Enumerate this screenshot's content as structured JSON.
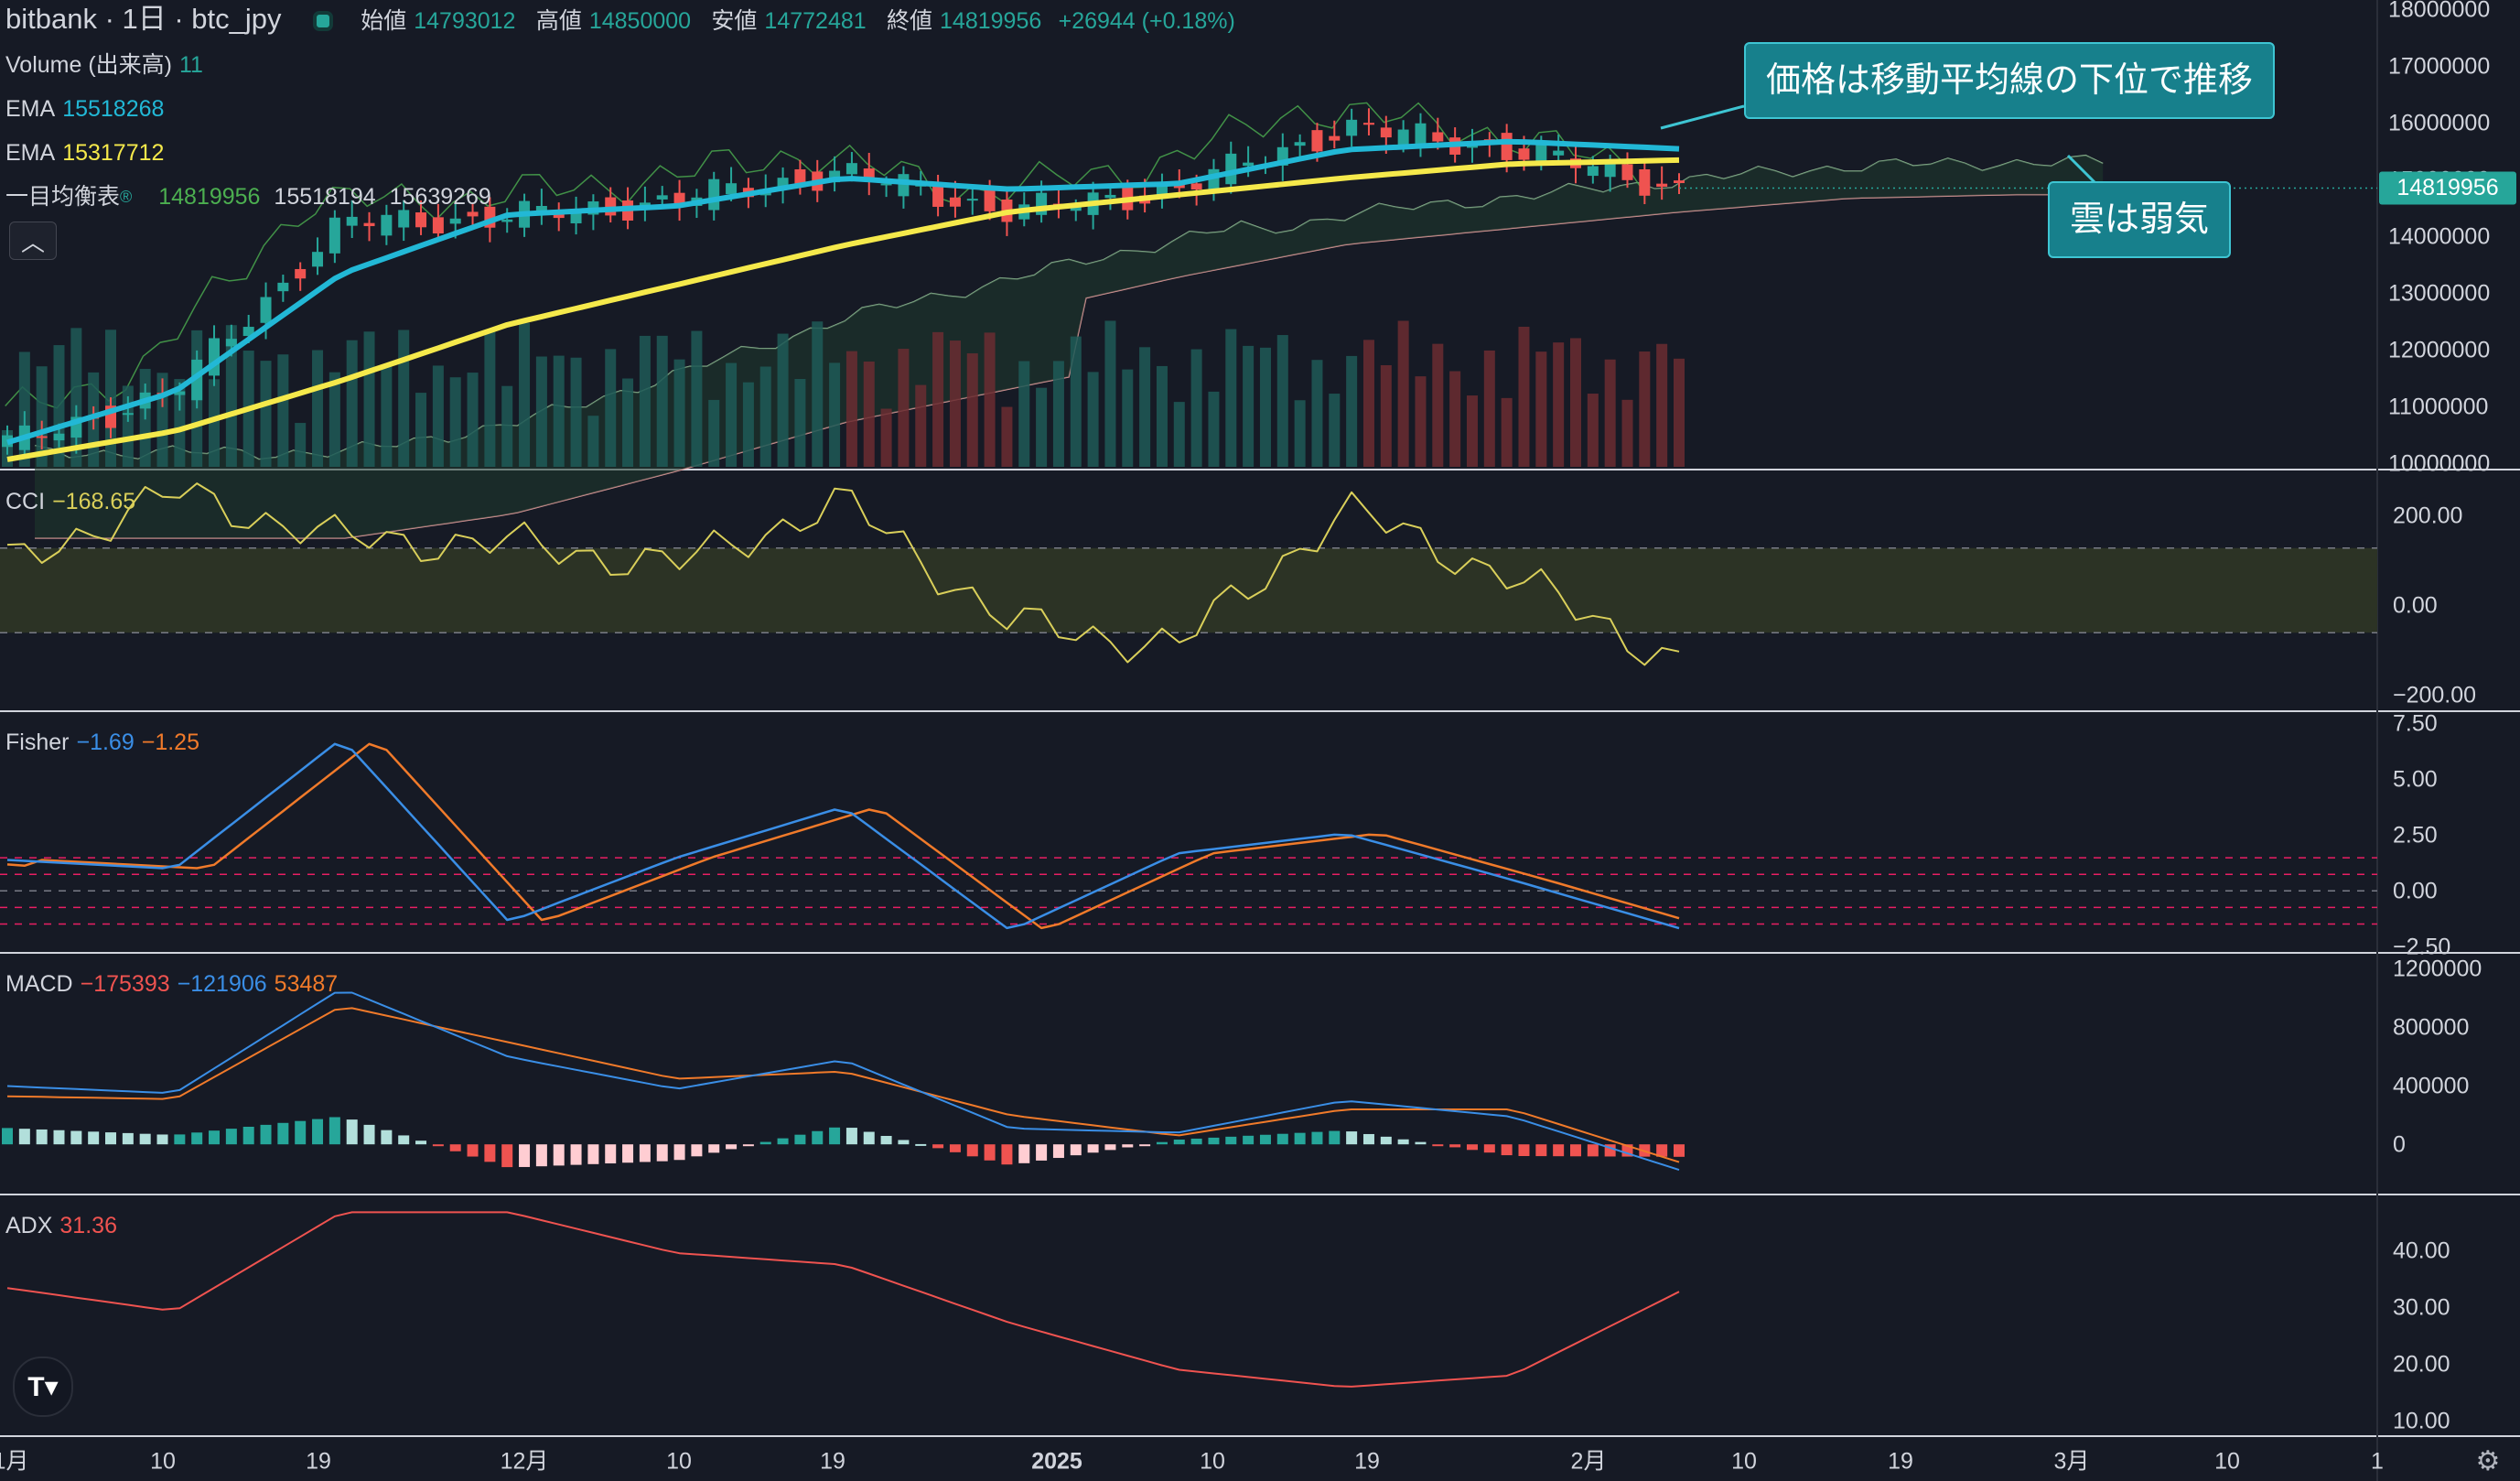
{
  "header": {
    "symbol": "bitbank · 1日 · btc_jpy",
    "open_label": "始値",
    "open_value": "14793012",
    "high_label": "高値",
    "high_value": "14850000",
    "low_label": "安値",
    "low_value": "14772481",
    "close_label": "終値",
    "close_value": "14819956",
    "change": "+26944 (+0.18%)"
  },
  "legends": {
    "volume": {
      "label": "Volume (出来高)",
      "value": "11"
    },
    "ema1": {
      "label": "EMA",
      "value": "15518268"
    },
    "ema2": {
      "label": "EMA",
      "value": "15317712"
    },
    "ichimoku": {
      "label": "一目均衡表",
      "v1": "14819956",
      "v2": "15518194",
      "v3": "15639269"
    },
    "cci": {
      "label": "CCI",
      "value": "−168.65"
    },
    "fisher": {
      "label": "Fisher",
      "v1": "−1.69",
      "v2": "−1.25"
    },
    "macd": {
      "label": "MACD",
      "v1": "−175393",
      "v2": "−121906",
      "v3": "53487"
    },
    "adx": {
      "label": "ADX",
      "value": "31.36"
    }
  },
  "annotations": {
    "a1": "価格は移動平均線の下位で推移",
    "a2": "雲は弱気"
  },
  "price_axis": {
    "ticks": [
      "18000000",
      "17000000",
      "16000000",
      "15000000",
      "14000000",
      "13000000",
      "12000000",
      "11000000",
      "10000000"
    ],
    "current_label": "14819956"
  },
  "cci_axis": [
    "200.00",
    "0.00",
    "−200.00"
  ],
  "fisher_axis": [
    "7.50",
    "5.00",
    "2.50",
    "0.00",
    "−2.50"
  ],
  "macd_axis": [
    "1200000",
    "800000",
    "400000",
    "0"
  ],
  "adx_axis": [
    "40.00",
    "30.00",
    "20.00",
    "10.00"
  ],
  "time_axis": [
    "1月",
    "10",
    "19",
    "12月",
    "10",
    "19",
    "2025",
    "10",
    "19",
    "2月",
    "10",
    "19",
    "3月",
    "10",
    "1"
  ],
  "colors": {
    "up": "#26a69a",
    "down": "#ef5350",
    "ema_fast": "#22b8d6",
    "ema_slow": "#f5e94b",
    "cci": "#d9cf5a",
    "fisher1": "#3a8ee6",
    "fisher2": "#f07a2a",
    "adx": "#ef5350",
    "grid_line": "#d1d4dc"
  },
  "chart_data": {
    "type": "line",
    "title": "bitbank · 1日 · btc_jpy",
    "x_dates": [
      "2024-11-01",
      "2024-11-10",
      "2024-11-19",
      "2024-12-01",
      "2024-12-10",
      "2024-12-19",
      "2025-01-01",
      "2025-01-10",
      "2025-01-19",
      "2025-02-01",
      "2025-02-06"
    ],
    "close": [
      10250000,
      11200000,
      14200000,
      14300000,
      14600000,
      15100000,
      14400000,
      14800000,
      15900000,
      15500000,
      14819956
    ],
    "ema_fast": [
      10300000,
      11200000,
      13300000,
      14350000,
      14500000,
      15000000,
      14800000,
      14900000,
      15500000,
      15650000,
      15518268
    ],
    "ema_slow": [
      10000000,
      10500000,
      11400000,
      12400000,
      13100000,
      13800000,
      14400000,
      14700000,
      15000000,
      15250000,
      15317712
    ],
    "price_ylim": [
      9900000,
      18000000
    ],
    "cci": [
      60,
      230,
      120,
      110,
      60,
      210,
      -80,
      -130,
      190,
      30,
      -168.65
    ],
    "cci_ylim": [
      -200,
      200
    ],
    "fisher": [
      1.4,
      1.0,
      6.9,
      -1.4,
      1.5,
      3.8,
      -1.8,
      1.7,
      2.6,
      0.5,
      -1.69
    ],
    "fisher_signal": [
      1.2,
      0.6,
      6.8,
      -1.2,
      1.2,
      3.6,
      -1.6,
      1.6,
      2.5,
      0.6,
      -1.25
    ],
    "fisher_ylim": [
      -2.5,
      7.5
    ],
    "macd": [
      400000,
      350000,
      1070000,
      600000,
      380000,
      580000,
      110000,
      80000,
      300000,
      190000,
      -175393
    ],
    "macd_signal": [
      330000,
      310000,
      950000,
      700000,
      450000,
      500000,
      200000,
      60000,
      240000,
      240000,
      -121906
    ],
    "macd_hist": [
      -20000,
      80000,
      300000,
      -100000,
      -150000,
      40000,
      -140000,
      20000,
      90000,
      -30000,
      53487
    ],
    "macd_ylim": [
      -200000,
      1200000
    ],
    "adx": [
      32,
      28,
      45,
      45,
      38,
      36,
      26,
      18,
      15,
      17,
      31.36
    ],
    "adx_ylim": [
      10,
      45
    ],
    "xlabel": "",
    "ylabel": ""
  }
}
